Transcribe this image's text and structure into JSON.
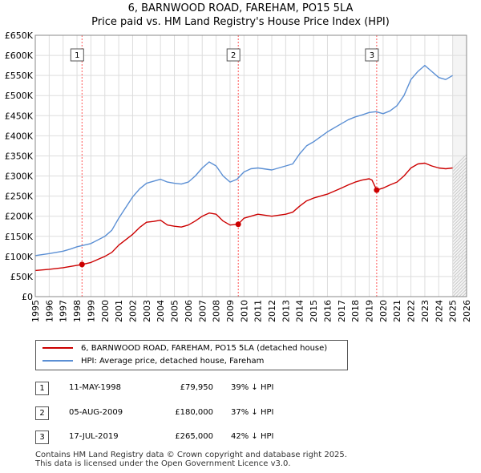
{
  "title_line1": "6, BARNWOOD ROAD, FAREHAM, PO15 5LA",
  "title_line2": "Price paid vs. HM Land Registry's House Price Index (HPI)",
  "colors": {
    "property": "#cc0000",
    "hpi": "#5b8fd4",
    "grid": "#dddddd",
    "plot_bg": "#ffffff",
    "marker_line": "#ff5555",
    "hatch": "#bbbbbb"
  },
  "chart_data": {
    "type": "line",
    "title": "6, BARNWOOD ROAD, FAREHAM, PO15 5LA — Price paid vs. HM Land Registry's House Price Index (HPI)",
    "xlabel": "",
    "ylabel": "",
    "xlim": [
      1995,
      2026
    ],
    "ylim": [
      0,
      650000
    ],
    "grid": true,
    "legend_position": "below",
    "x_ticks": [
      "1995",
      "1996",
      "1997",
      "1998",
      "1999",
      "2000",
      "2001",
      "2002",
      "2003",
      "2004",
      "2005",
      "2006",
      "2007",
      "2008",
      "2009",
      "2010",
      "2011",
      "2012",
      "2013",
      "2014",
      "2015",
      "2016",
      "2017",
      "2018",
      "2019",
      "2020",
      "2021",
      "2022",
      "2023",
      "2024",
      "2025",
      "2026"
    ],
    "y_ticks": [
      {
        "value": 0,
        "label": "£0"
      },
      {
        "value": 50000,
        "label": "£50K"
      },
      {
        "value": 100000,
        "label": "£100K"
      },
      {
        "value": 150000,
        "label": "£150K"
      },
      {
        "value": 200000,
        "label": "£200K"
      },
      {
        "value": 250000,
        "label": "£250K"
      },
      {
        "value": 300000,
        "label": "£300K"
      },
      {
        "value": 350000,
        "label": "£350K"
      },
      {
        "value": 400000,
        "label": "£400K"
      },
      {
        "value": 450000,
        "label": "£450K"
      },
      {
        "value": 500000,
        "label": "£500K"
      },
      {
        "value": 550000,
        "label": "£550K"
      },
      {
        "value": 600000,
        "label": "£600K"
      },
      {
        "value": 650000,
        "label": "£650K"
      }
    ],
    "hatch_from_year": 2025.0,
    "series": [
      {
        "name": "6, BARNWOOD ROAD, FAREHAM, PO15 5LA (detached house)",
        "x": [
          1995.0,
          1996.0,
          1997.0,
          1997.5,
          1998.36,
          1999.0,
          2000.0,
          2000.5,
          2001.0,
          2002.0,
          2002.5,
          2003.0,
          2003.5,
          2004.0,
          2004.5,
          2005.0,
          2005.5,
          2006.0,
          2006.5,
          2007.0,
          2007.5,
          2008.0,
          2008.5,
          2009.0,
          2009.59,
          2010.0,
          2010.5,
          2011.0,
          2012.0,
          2013.0,
          2013.5,
          2014.0,
          2014.5,
          2015.0,
          2016.0,
          2017.0,
          2017.5,
          2018.0,
          2018.5,
          2019.0,
          2019.2,
          2019.54,
          2020.0,
          2020.5,
          2021.0,
          2021.5,
          2022.0,
          2022.5,
          2023.0,
          2023.5,
          2024.0,
          2024.5,
          2025.0
        ],
        "values": [
          65000,
          68000,
          72000,
          75000,
          79950,
          85000,
          100000,
          110000,
          128000,
          155000,
          172000,
          185000,
          187000,
          190000,
          178000,
          175000,
          173000,
          178000,
          188000,
          200000,
          208000,
          205000,
          188000,
          178000,
          180000,
          195000,
          200000,
          205000,
          200000,
          205000,
          210000,
          225000,
          238000,
          245000,
          255000,
          270000,
          278000,
          285000,
          290000,
          293000,
          290000,
          265000,
          270000,
          278000,
          285000,
          300000,
          320000,
          330000,
          332000,
          325000,
          320000,
          318000,
          320000
        ]
      },
      {
        "name": "HPI: Average price, detached house, Fareham",
        "x": [
          1995.0,
          1996.0,
          1997.0,
          1997.5,
          1998.0,
          1999.0,
          2000.0,
          2000.5,
          2001.0,
          2002.0,
          2002.5,
          2003.0,
          2003.5,
          2004.0,
          2004.5,
          2005.0,
          2005.5,
          2006.0,
          2006.5,
          2007.0,
          2007.5,
          2008.0,
          2008.5,
          2009.0,
          2009.5,
          2010.0,
          2010.5,
          2011.0,
          2012.0,
          2013.0,
          2013.5,
          2014.0,
          2014.5,
          2015.0,
          2016.0,
          2017.0,
          2017.5,
          2018.0,
          2018.5,
          2019.0,
          2019.5,
          2020.0,
          2020.5,
          2021.0,
          2021.5,
          2022.0,
          2022.5,
          2023.0,
          2023.5,
          2024.0,
          2024.5,
          2025.0
        ],
        "values": [
          102000,
          107000,
          113000,
          118000,
          124000,
          132000,
          150000,
          165000,
          195000,
          248000,
          268000,
          282000,
          287000,
          292000,
          285000,
          282000,
          280000,
          285000,
          300000,
          320000,
          335000,
          325000,
          300000,
          285000,
          292000,
          310000,
          318000,
          320000,
          315000,
          325000,
          330000,
          355000,
          375000,
          385000,
          410000,
          430000,
          440000,
          447000,
          452000,
          458000,
          460000,
          455000,
          462000,
          475000,
          500000,
          540000,
          560000,
          575000,
          560000,
          545000,
          540000,
          550000
        ]
      }
    ],
    "sales": [
      {
        "label": "1",
        "x": 1998.36,
        "value": 79950
      },
      {
        "label": "2",
        "x": 2009.59,
        "value": 180000
      },
      {
        "label": "3",
        "x": 2019.54,
        "value": 265000
      }
    ]
  },
  "legend": {
    "property": "6, BARNWOOD ROAD, FAREHAM, PO15 5LA (detached house)",
    "hpi": "HPI: Average price, detached house, Fareham"
  },
  "rows": [
    {
      "num": "1",
      "date": "11-MAY-1998",
      "price": "£79,950",
      "hpi": "39% ↓ HPI"
    },
    {
      "num": "2",
      "date": "05-AUG-2009",
      "price": "£180,000",
      "hpi": "37% ↓ HPI"
    },
    {
      "num": "3",
      "date": "17-JUL-2019",
      "price": "£265,000",
      "hpi": "42% ↓ HPI"
    }
  ],
  "footer_line1": "Contains HM Land Registry data © Crown copyright and database right 2025.",
  "footer_line2": "This data is licensed under the Open Government Licence v3.0."
}
